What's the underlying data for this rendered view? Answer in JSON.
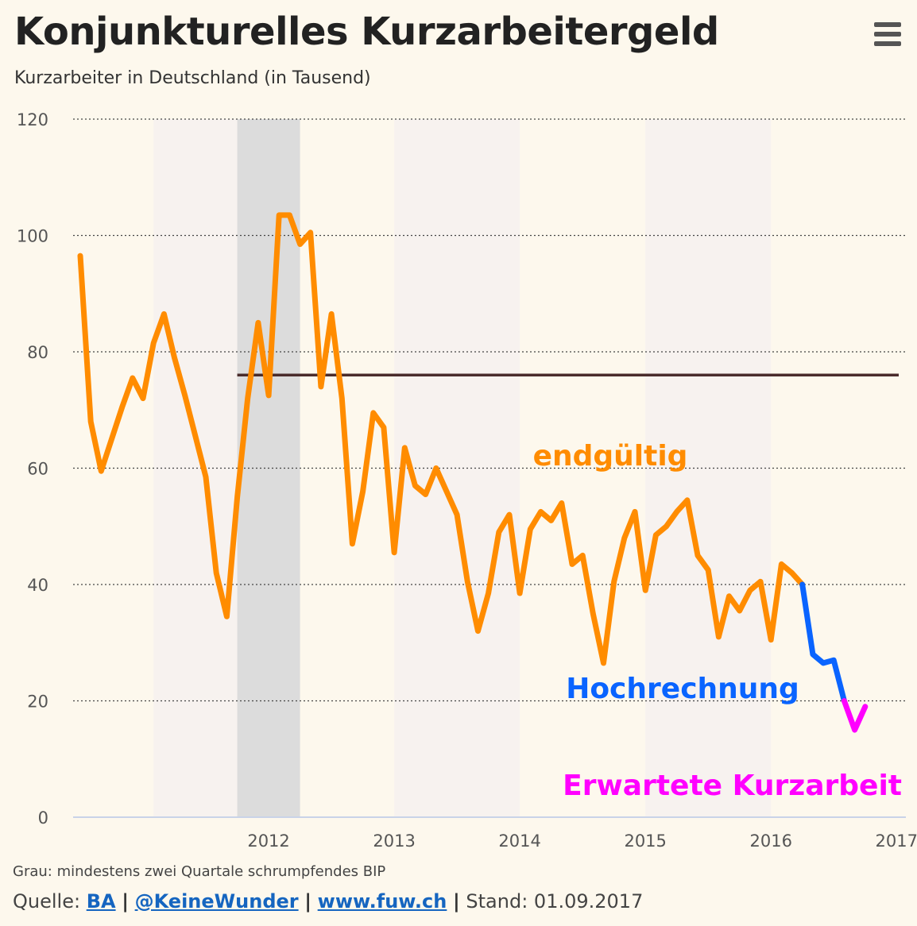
{
  "header": {
    "title": "Konjunkturelles Kurzarbeitergeld",
    "subtitle": "Kurzarbeiter in Deutschland (in Tausend)"
  },
  "footer": {
    "note": "Grau: mindestens zwei Quartale schrumpfendes BIP",
    "source_label": "Quelle:",
    "links": [
      "BA",
      "@KeineWunder",
      "www.fuw.ch"
    ],
    "separator": "|",
    "stand": "Stand: 01.09.2017"
  },
  "icons": {
    "menu": "hamburger-menu-icon"
  },
  "colors": {
    "background": "#fdf8ed",
    "endgueltig": "#ff8c00",
    "hochrechnung": "#0a64ff",
    "erwartet": "#ff00ff",
    "threshold": "#4a2c2c",
    "recession_band": "#dcdcdc",
    "year_band": "#f7f2ef"
  },
  "chart_data": {
    "type": "line",
    "title": "Konjunkturelles Kurzarbeitergeld",
    "subtitle": "Kurzarbeiter in Deutschland (in Tausend)",
    "xlabel": "",
    "ylabel": "",
    "ylim": [
      0,
      120
    ],
    "yticks": [
      0,
      20,
      40,
      60,
      80,
      100,
      120
    ],
    "xticks": [
      "2012",
      "2013",
      "2014",
      "2015",
      "2016",
      "2017"
    ],
    "grid": true,
    "x_start": "2011-01",
    "series": [
      {
        "name": "endgültig",
        "color": "#ff8c00",
        "x": [
          "2011-01",
          "2011-02",
          "2011-03",
          "2011-04",
          "2011-05",
          "2011-06",
          "2011-07",
          "2011-08",
          "2011-09",
          "2011-10",
          "2011-11",
          "2011-12",
          "2012-01",
          "2012-02",
          "2012-03",
          "2012-04",
          "2012-05",
          "2012-06",
          "2012-07",
          "2012-08",
          "2012-09",
          "2012-10",
          "2012-11",
          "2012-12",
          "2013-01",
          "2013-02",
          "2013-03",
          "2013-04",
          "2013-05",
          "2013-06",
          "2013-07",
          "2013-08",
          "2013-09",
          "2013-10",
          "2013-11",
          "2013-12",
          "2014-01",
          "2014-02",
          "2014-03",
          "2014-04",
          "2014-05",
          "2014-06",
          "2014-07",
          "2014-08",
          "2014-09",
          "2014-10",
          "2014-11",
          "2014-12",
          "2015-01",
          "2015-02",
          "2015-03",
          "2015-04",
          "2015-05",
          "2015-06",
          "2015-07",
          "2015-08",
          "2015-09",
          "2015-10",
          "2015-11",
          "2015-12",
          "2016-01",
          "2016-02",
          "2016-03",
          "2016-04",
          "2016-05",
          "2016-06",
          "2016-07",
          "2016-08",
          "2016-09",
          "2016-10"
        ],
        "values": [
          96.5,
          68,
          59.5,
          65,
          70.5,
          75.5,
          72,
          81.5,
          86.5,
          79,
          72.5,
          65.5,
          58.5,
          42,
          34.5,
          55,
          72,
          85,
          72.5,
          103.5,
          103.5,
          98.5,
          100.5,
          74,
          86.5,
          72,
          47,
          56,
          69.5,
          67,
          45.5,
          63.5,
          57,
          55.5,
          60,
          56,
          52,
          40.5,
          32,
          38.5,
          49,
          52,
          38.5,
          49.5,
          52.5,
          51,
          54,
          43.5,
          45,
          35,
          26.5,
          40.5,
          48,
          52.5,
          39,
          48.5,
          50,
          52.5,
          54.5,
          45,
          42.5,
          31,
          38,
          35.5,
          39,
          40.5,
          30.5,
          43.5,
          42,
          40
        ]
      },
      {
        "name": "Hochrechnung",
        "color": "#0a64ff",
        "x": [
          "2016-10",
          "2016-11",
          "2016-12",
          "2017-01",
          "2017-02"
        ],
        "values": [
          40,
          28,
          26.5,
          27,
          20
        ]
      },
      {
        "name": "Erwartete Kurzarbeit",
        "color": "#ff00ff",
        "x": [
          "2017-02",
          "2017-03",
          "2017-04"
        ],
        "values": [
          20,
          15,
          19
        ]
      }
    ],
    "threshold_line": {
      "value": 76,
      "from": "2012-04",
      "to": "2017-08",
      "color": "#4a2c2c"
    },
    "recession_band": {
      "from": "2012-04",
      "to": "2012-10"
    },
    "year_bands": [
      {
        "from": "2011-08",
        "to": "2012-04"
      },
      {
        "from": "2013-07",
        "to": "2014-07"
      },
      {
        "from": "2015-07",
        "to": "2016-07"
      }
    ],
    "annotations": [
      {
        "text": "endgültig",
        "color": "#ff8c00"
      },
      {
        "text": "Hochrechnung",
        "color": "#0a64ff"
      },
      {
        "text": "Erwartete Kurzarbeit",
        "color": "#ff00ff"
      }
    ]
  }
}
